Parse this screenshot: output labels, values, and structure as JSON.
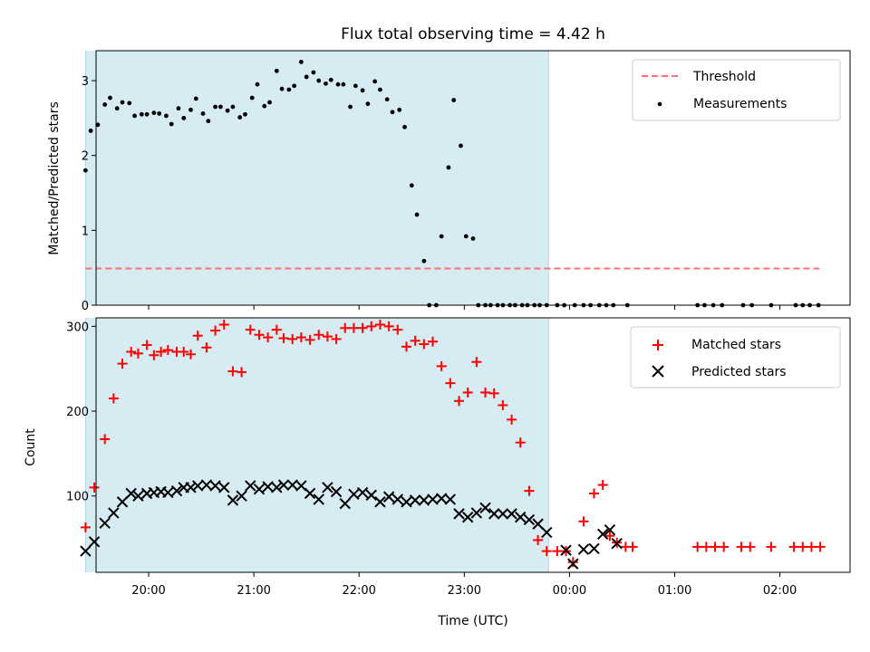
{
  "chart_data": [
    {
      "type": "scatter",
      "title": "Flux total observing time = 4.42 h",
      "ylabel": "Matched/Predicted stars",
      "xlim": [
        "19:30",
        "02:40"
      ],
      "ylim": [
        0,
        3.4
      ],
      "yticks": [
        0,
        1,
        2,
        3
      ],
      "observing_window": [
        "19:24",
        "23:48"
      ],
      "legend": {
        "position": "top-right",
        "entries": [
          "Threshold",
          "Measurements"
        ]
      },
      "threshold": {
        "name": "Threshold",
        "value": 0.49,
        "x": [
          "19:24",
          "02:24"
        ],
        "color": "#ff7070",
        "style": "dashed"
      },
      "series": [
        {
          "name": "Measurements",
          "color": "#000000",
          "x": [
            "19:24",
            "19:27",
            "19:31",
            "19:35",
            "19:38",
            "19:42",
            "19:45",
            "19:49",
            "19:52",
            "19:56",
            "19:59",
            "20:03",
            "20:06",
            "20:10",
            "20:13",
            "20:17",
            "20:20",
            "20:24",
            "20:27",
            "20:31",
            "20:34",
            "20:38",
            "20:41",
            "20:45",
            "20:48",
            "20:52",
            "20:55",
            "20:59",
            "21:02",
            "21:06",
            "21:09",
            "21:13",
            "21:16",
            "21:20",
            "21:23",
            "21:27",
            "21:30",
            "21:34",
            "21:37",
            "21:41",
            "21:44",
            "21:48",
            "21:51",
            "21:55",
            "21:58",
            "22:02",
            "22:05",
            "22:09",
            "22:12",
            "22:16",
            "22:19",
            "22:23",
            "22:26",
            "22:30",
            "22:33",
            "22:37",
            "22:40",
            "22:44",
            "22:47",
            "22:51",
            "22:54",
            "22:58",
            "23:01",
            "23:05",
            "23:08",
            "23:12",
            "23:15",
            "23:19",
            "23:22",
            "23:26",
            "23:29",
            "23:33",
            "23:36",
            "23:40",
            "23:43",
            "23:47",
            "23:53",
            "23:57",
            "00:03",
            "00:08",
            "00:12",
            "00:17",
            "00:21",
            "00:25",
            "00:33",
            "01:13",
            "01:17",
            "01:22",
            "01:27",
            "01:39",
            "01:44",
            "01:55",
            "02:09",
            "02:13",
            "02:17",
            "02:22"
          ],
          "y": [
            1.8,
            2.33,
            2.41,
            2.68,
            2.77,
            2.63,
            2.71,
            2.7,
            2.53,
            2.55,
            2.55,
            2.57,
            2.56,
            2.53,
            2.42,
            2.63,
            2.5,
            2.61,
            2.76,
            2.56,
            2.46,
            2.65,
            2.65,
            2.6,
            2.65,
            2.51,
            2.55,
            2.77,
            2.95,
            2.66,
            2.71,
            3.13,
            2.89,
            2.88,
            2.93,
            3.25,
            3.05,
            3.11,
            3.0,
            2.96,
            3.01,
            2.95,
            2.95,
            2.65,
            2.93,
            2.87,
            2.69,
            2.99,
            2.88,
            2.75,
            2.58,
            2.61,
            2.38,
            1.6,
            1.21,
            0.59,
            0.0,
            0.0,
            0.92,
            1.84,
            2.74,
            2.13,
            0.92,
            0.89,
            0.0,
            0.0,
            0.0,
            0.0,
            0.0,
            0.0,
            0.0,
            0.0,
            0.0,
            0.0,
            0.0,
            0.0,
            0.0,
            0.0,
            0.0,
            0.0,
            0.0,
            0.0,
            0.0,
            0.0,
            0.0,
            0.0,
            0.0,
            0.0,
            0.0,
            0.0,
            0.0,
            0.0,
            0.0,
            0.0,
            0.0,
            0.0
          ]
        }
      ]
    },
    {
      "type": "scatter",
      "xlabel": "Time (UTC)",
      "ylabel": "Count",
      "xlim": [
        "19:30",
        "02:40"
      ],
      "ylim": [
        10,
        310
      ],
      "yticks": [
        100,
        200,
        300
      ],
      "xticks": [
        "20:00",
        "21:00",
        "22:00",
        "23:00",
        "00:00",
        "01:00",
        "02:00"
      ],
      "observing_window": [
        "19:24",
        "23:48"
      ],
      "legend": {
        "position": "top-right",
        "entries": [
          "Matched stars",
          "Predicted stars"
        ]
      },
      "series": [
        {
          "name": "Matched stars",
          "marker": "+",
          "color": "#ff0000",
          "x": [
            "19:24",
            "19:29",
            "19:35",
            "19:40",
            "19:45",
            "19:50",
            "19:54",
            "19:59",
            "20:03",
            "20:07",
            "20:11",
            "20:16",
            "20:20",
            "20:24",
            "20:28",
            "20:33",
            "20:38",
            "20:43",
            "20:48",
            "20:53",
            "20:58",
            "21:03",
            "21:08",
            "21:13",
            "21:17",
            "21:22",
            "21:27",
            "21:32",
            "21:37",
            "21:42",
            "21:47",
            "21:52",
            "21:57",
            "22:02",
            "22:07",
            "22:12",
            "22:17",
            "22:22",
            "22:27",
            "22:32",
            "22:37",
            "22:42",
            "22:47",
            "22:52",
            "22:57",
            "23:02",
            "23:07",
            "23:12",
            "23:17",
            "23:22",
            "23:27",
            "23:32",
            "23:37",
            "23:42",
            "23:47",
            "23:53",
            "23:58",
            "00:02",
            "00:08",
            "00:14",
            "00:19",
            "00:23",
            "00:27",
            "00:32",
            "00:36",
            "01:13",
            "01:18",
            "01:23",
            "01:28",
            "01:38",
            "01:43",
            "01:55",
            "02:08",
            "02:13",
            "02:18",
            "02:23"
          ],
          "y": [
            63,
            110,
            167,
            215,
            256,
            270,
            268,
            278,
            266,
            270,
            272,
            270,
            270,
            267,
            289,
            275,
            295,
            302,
            247,
            246,
            296,
            290,
            287,
            296,
            286,
            285,
            287,
            284,
            290,
            288,
            285,
            298,
            298,
            298,
            300,
            302,
            300,
            296,
            276,
            283,
            279,
            282,
            253,
            233,
            212,
            222,
            258,
            222,
            221,
            207,
            190,
            163,
            106,
            48,
            35,
            35,
            35,
            22,
            70,
            103,
            113,
            53,
            45,
            40,
            40,
            40,
            40,
            40,
            40,
            40,
            40,
            40,
            40,
            40,
            40,
            40
          ]
        },
        {
          "name": "Predicted stars",
          "marker": "x",
          "color": "#000000",
          "x": [
            "19:24",
            "19:29",
            "19:35",
            "19:40",
            "19:45",
            "19:50",
            "19:54",
            "19:59",
            "20:03",
            "20:07",
            "20:11",
            "20:16",
            "20:20",
            "20:24",
            "20:28",
            "20:33",
            "20:38",
            "20:43",
            "20:48",
            "20:53",
            "20:58",
            "21:03",
            "21:08",
            "21:13",
            "21:17",
            "21:22",
            "21:27",
            "21:32",
            "21:37",
            "21:42",
            "21:47",
            "21:52",
            "21:57",
            "22:02",
            "22:07",
            "22:12",
            "22:17",
            "22:22",
            "22:27",
            "22:32",
            "22:37",
            "22:42",
            "22:47",
            "22:52",
            "22:57",
            "23:02",
            "23:07",
            "23:12",
            "23:17",
            "23:22",
            "23:27",
            "23:32",
            "23:37",
            "23:42",
            "23:47",
            "23:58",
            "00:02",
            "00:08",
            "00:14",
            "00:19",
            "00:23",
            "00:27"
          ],
          "y": [
            35,
            46,
            68,
            80,
            93,
            103,
            100,
            103,
            104,
            105,
            104,
            106,
            110,
            110,
            112,
            113,
            112,
            110,
            95,
            100,
            112,
            108,
            111,
            110,
            113,
            113,
            112,
            103,
            96,
            110,
            105,
            91,
            102,
            104,
            101,
            93,
            99,
            96,
            93,
            95,
            95,
            96,
            97,
            96,
            79,
            75,
            80,
            86,
            79,
            79,
            79,
            75,
            72,
            67,
            57,
            36,
            20,
            37,
            38,
            55,
            60,
            44
          ]
        }
      ]
    }
  ]
}
